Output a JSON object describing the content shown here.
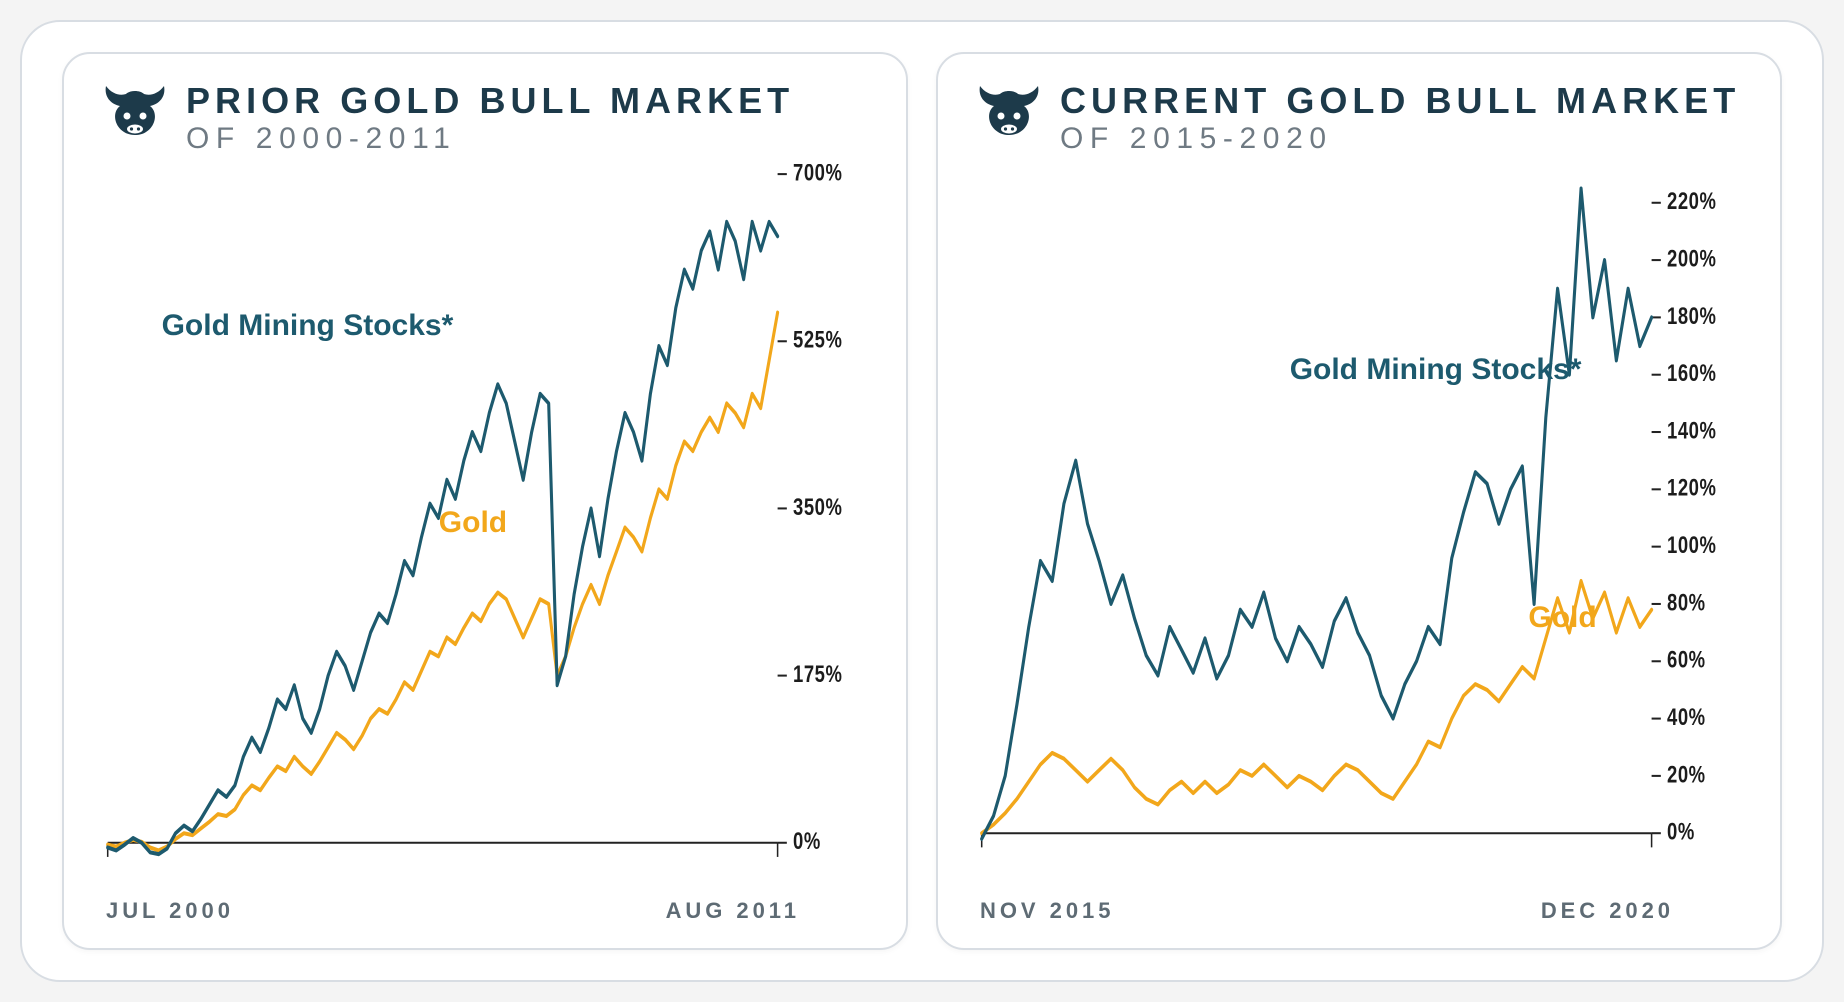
{
  "background_color": "#ffffff",
  "panel_border_color": "#d8dde3",
  "panel_border_radius": 28,
  "title_color": "#1d3a4a",
  "subtitle_color": "#6f7a83",
  "axis_text_color": "#5e6b74",
  "tick_text_color": "#1c1c1c",
  "axis_line_color": "#222222",
  "series_line_width": 4,
  "title_fontsize": 36,
  "subtitle_fontsize": 30,
  "series_label_fontsize": 30,
  "tick_fontsize": 24,
  "xlabel_fontsize": 22,
  "bull_icon_color": "#1d3a4a",
  "panels": [
    {
      "title": "PRIOR GOLD BULL MARKET",
      "subtitle": "OF 2000-2011",
      "x_start_label": "JUL 2000",
      "x_end_label": "AUG 2011",
      "ylim": [
        -20,
        700
      ],
      "yticks": [
        0,
        175,
        350,
        525,
        700
      ],
      "ytick_labels": [
        "0%",
        "175%",
        "350%",
        "525%",
        "700%"
      ],
      "series": [
        {
          "name": "Gold Mining Stocks*",
          "color": "#1d5a6e",
          "label_pos": {
            "left_pct": 8,
            "top_pct": 20
          },
          "values": [
            -5,
            -8,
            -2,
            5,
            0,
            -10,
            -12,
            -6,
            10,
            18,
            12,
            25,
            40,
            55,
            48,
            60,
            90,
            110,
            95,
            120,
            150,
            140,
            165,
            130,
            115,
            140,
            175,
            200,
            185,
            160,
            190,
            220,
            240,
            230,
            260,
            295,
            280,
            320,
            355,
            340,
            380,
            360,
            400,
            430,
            410,
            450,
            480,
            460,
            420,
            380,
            430,
            470,
            460,
            165,
            195,
            260,
            310,
            350,
            300,
            360,
            410,
            450,
            430,
            400,
            470,
            520,
            500,
            560,
            600,
            580,
            620,
            640,
            600,
            650,
            630,
            590,
            650,
            620,
            650,
            635
          ]
        },
        {
          "name": "Gold",
          "color": "#f2a71b",
          "label_pos": {
            "left_pct": 44,
            "top_pct": 47
          },
          "values": [
            -2,
            -4,
            0,
            3,
            1,
            -5,
            -8,
            -4,
            4,
            10,
            8,
            15,
            22,
            30,
            28,
            35,
            50,
            60,
            55,
            68,
            80,
            75,
            90,
            80,
            72,
            85,
            100,
            115,
            108,
            98,
            112,
            130,
            140,
            135,
            150,
            168,
            160,
            180,
            200,
            195,
            215,
            208,
            225,
            240,
            232,
            250,
            262,
            255,
            235,
            215,
            235,
            255,
            250,
            175,
            195,
            225,
            250,
            270,
            250,
            280,
            305,
            330,
            320,
            305,
            340,
            370,
            360,
            395,
            420,
            410,
            430,
            445,
            430,
            460,
            450,
            435,
            470,
            455,
            505,
            555
          ]
        }
      ]
    },
    {
      "title": "CURRENT GOLD BULL MARKET",
      "subtitle": "OF 2015-2020",
      "x_start_label": "NOV 2015",
      "x_end_label": "DEC 2020",
      "ylim": [
        -10,
        230
      ],
      "yticks": [
        0,
        20,
        40,
        60,
        80,
        100,
        120,
        140,
        160,
        180,
        200,
        220
      ],
      "ytick_labels": [
        "0%",
        "20%",
        "40%",
        "60%",
        "80%",
        "100%",
        "120%",
        "140%",
        "160%",
        "180%",
        "200%",
        "220%"
      ],
      "series": [
        {
          "name": "Gold Mining Stocks*",
          "color": "#1d5a6e",
          "label_pos": {
            "left_pct": 41,
            "top_pct": 26
          },
          "values": [
            -2,
            6,
            20,
            45,
            72,
            95,
            88,
            115,
            130,
            108,
            95,
            80,
            90,
            75,
            62,
            55,
            72,
            64,
            56,
            68,
            54,
            62,
            78,
            72,
            84,
            68,
            60,
            72,
            66,
            58,
            74,
            82,
            70,
            62,
            48,
            40,
            52,
            60,
            72,
            66,
            96,
            112,
            126,
            122,
            108,
            120,
            128,
            80,
            145,
            190,
            160,
            225,
            180,
            200,
            165,
            190,
            170,
            180
          ]
        },
        {
          "name": "Gold",
          "color": "#f2a71b",
          "label_pos": {
            "left_pct": 72,
            "top_pct": 60
          },
          "values": [
            0,
            3,
            7,
            12,
            18,
            24,
            28,
            26,
            22,
            18,
            22,
            26,
            22,
            16,
            12,
            10,
            15,
            18,
            14,
            18,
            14,
            17,
            22,
            20,
            24,
            20,
            16,
            20,
            18,
            15,
            20,
            24,
            22,
            18,
            14,
            12,
            18,
            24,
            32,
            30,
            40,
            48,
            52,
            50,
            46,
            52,
            58,
            54,
            68,
            82,
            70,
            88,
            75,
            84,
            70,
            82,
            72,
            78
          ]
        }
      ]
    }
  ]
}
